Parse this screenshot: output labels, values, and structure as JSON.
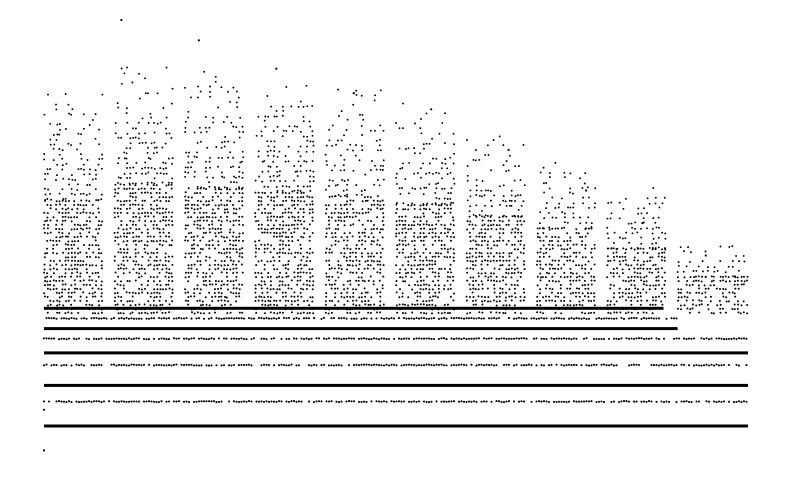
{
  "colors": {
    "background": "#ffffff",
    "marker": "#000000"
  },
  "chart_data": {
    "type": "scatter",
    "title": "",
    "xlabel": "",
    "ylabel": "",
    "axes_visible": false,
    "grid": false,
    "legend": "none",
    "xlim": [
      0,
      1
    ],
    "ylim": [
      0,
      1
    ],
    "marker": "dot",
    "description_free": true,
    "blocks": [
      {
        "x0": 0.0,
        "x1": 0.083,
        "top": 0.85,
        "dense": 0.56
      },
      {
        "x0": 0.1,
        "x1": 0.185,
        "top": 0.93,
        "dense": 0.6
      },
      {
        "x0": 0.2,
        "x1": 0.285,
        "top": 0.9,
        "dense": 0.59
      },
      {
        "x0": 0.3,
        "x1": 0.385,
        "top": 0.87,
        "dense": 0.58
      },
      {
        "x0": 0.4,
        "x1": 0.485,
        "top": 0.84,
        "dense": 0.57
      },
      {
        "x0": 0.5,
        "x1": 0.585,
        "top": 0.8,
        "dense": 0.55
      },
      {
        "x0": 0.6,
        "x1": 0.685,
        "top": 0.73,
        "dense": 0.52
      },
      {
        "x0": 0.7,
        "x1": 0.785,
        "top": 0.66,
        "dense": 0.49
      },
      {
        "x0": 0.8,
        "x1": 0.885,
        "top": 0.59,
        "dense": 0.44
      },
      {
        "x0": 0.9,
        "x1": 1.0,
        "top": 0.47,
        "dense": 0.37
      }
    ],
    "bands": [
      {
        "y": 0.0,
        "x0": 0.0,
        "x1": 1.0,
        "solid": true
      },
      {
        "y": 0.06,
        "x0": 0.0,
        "x1": 1.0,
        "solid": false
      },
      {
        "y": 0.1,
        "x0": 0.0,
        "x1": 1.0,
        "solid": true
      },
      {
        "y": 0.15,
        "x0": 0.0,
        "x1": 1.0,
        "solid": false
      },
      {
        "y": 0.18,
        "x0": 0.0,
        "x1": 1.0,
        "solid": true
      },
      {
        "y": 0.215,
        "x0": 0.0,
        "x1": 1.0,
        "solid": false
      },
      {
        "y": 0.24,
        "x0": 0.0,
        "x1": 0.9,
        "solid": true
      },
      {
        "y": 0.265,
        "x0": 0.0,
        "x1": 0.9,
        "solid": false
      },
      {
        "y": 0.29,
        "x0": 0.0,
        "x1": 0.88,
        "solid": true
      }
    ],
    "outliers": [
      {
        "x": 0.0,
        "y": -0.06
      },
      {
        "x": 0.0,
        "y": 0.04
      },
      {
        "x": 0.11,
        "y": 1.0
      },
      {
        "x": 0.22,
        "y": 0.95
      },
      {
        "x": 0.33,
        "y": 0.88
      },
      {
        "x": 0.44,
        "y": 0.82
      },
      {
        "x": 0.55,
        "y": 0.78
      },
      {
        "x": 0.66,
        "y": 0.68
      },
      {
        "x": 0.77,
        "y": 0.58
      },
      {
        "x": 0.85,
        "y": 0.5
      },
      {
        "x": 0.94,
        "y": 0.42
      }
    ]
  }
}
